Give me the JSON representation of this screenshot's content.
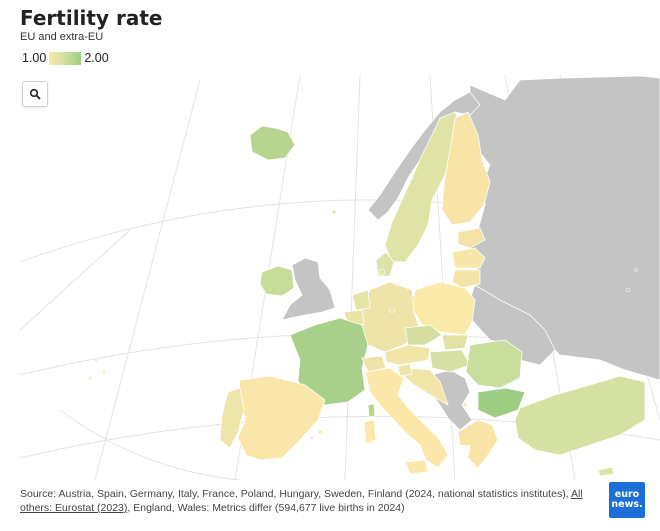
{
  "header": {
    "title": "Fertility rate",
    "subtitle": "EU and extra-EU"
  },
  "legend": {
    "min_label": "1.00",
    "max_label": "2.00",
    "min_color": "#fbe8a8",
    "max_color": "#9ccc82"
  },
  "controls": {
    "search_icon": "search-icon"
  },
  "colors": {
    "no_data": "#c4c4c4",
    "graticule": "#e3e3e3"
  },
  "footer": {
    "source_text": "Source: Austria, Spain, Germany, Italy, France, Poland, Hungary, Sweden, Finland (2024, national statistics institutes), ",
    "link_text": "All others: Eurostat (2023)",
    "tail_text": ", England, Wales: Metrics differ (594,677 live births in 2024)"
  },
  "logo": {
    "line1": "euro",
    "line2": "news."
  }
}
